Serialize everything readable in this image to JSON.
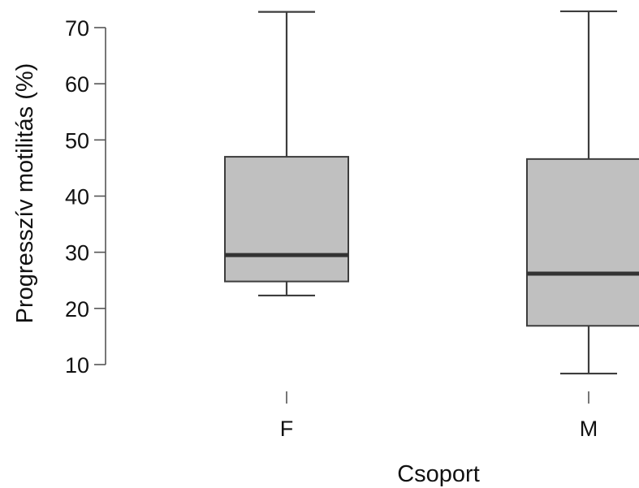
{
  "chart_data": {
    "type": "boxplot",
    "title": "",
    "xlabel": "Csoport",
    "ylabel": "Progresszív motilitás (%)",
    "ylim": [
      10,
      70
    ],
    "yticks": [
      10,
      20,
      30,
      40,
      50,
      60,
      70
    ],
    "categories": [
      "F",
      "M"
    ],
    "boxes": [
      {
        "category": "F",
        "whisker_low": 22.3,
        "q1": 24.8,
        "median": 29.5,
        "q3": 47.0,
        "whisker_high": 72.8
      },
      {
        "category": "M",
        "whisker_low": 8.4,
        "q1": 16.9,
        "median": 26.2,
        "q3": 46.6,
        "whisker_high": 72.9
      }
    ],
    "grid": false,
    "legend": "none"
  },
  "colors": {
    "box_fill": "#c0c0c0",
    "line": "#3d3d3d",
    "median": "#333333",
    "axis": "#555555"
  }
}
